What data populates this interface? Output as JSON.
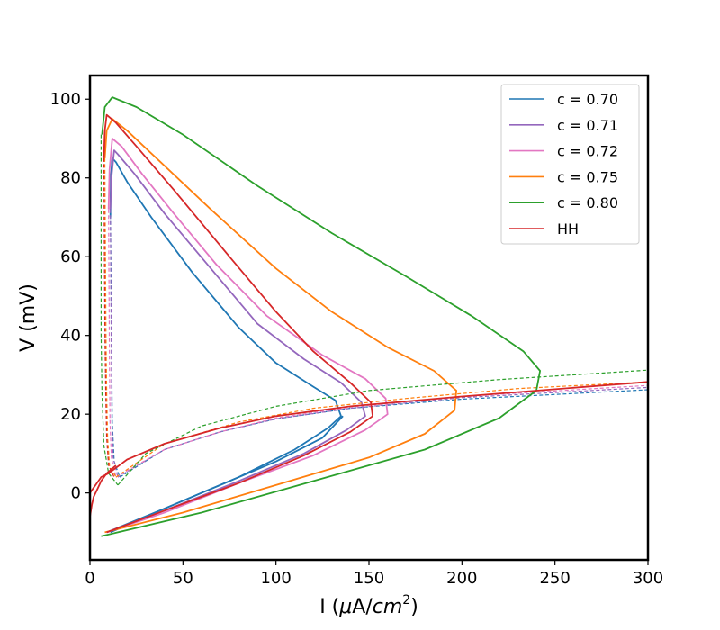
{
  "chart_data": {
    "type": "line",
    "title": "",
    "xlabel": {
      "prefix": "I (",
      "mu": "μ",
      "unit_mid": "A/",
      "unit_italic": "cm",
      "sup": "2",
      "suffix": ")"
    },
    "ylabel": "V (mV)",
    "xlim": [
      0,
      300
    ],
    "ylim": [
      -17,
      106
    ],
    "xticks": [
      "0",
      "50",
      "100",
      "150",
      "200",
      "250",
      "300"
    ],
    "yticks": [
      "0",
      "20",
      "40",
      "60",
      "80",
      "100"
    ],
    "xtick_values": [
      0,
      50,
      100,
      150,
      200,
      250,
      300
    ],
    "ytick_values": [
      0,
      20,
      40,
      60,
      80,
      100
    ],
    "grid": false,
    "legend_position": "top-right",
    "series": [
      {
        "name": "c = 0.70",
        "color": "#1f77b4",
        "solid": [
          [
            9,
            -10
          ],
          [
            40,
            -4
          ],
          [
            80,
            4
          ],
          [
            110,
            11
          ],
          [
            128,
            16.5
          ],
          [
            135,
            19.5
          ],
          [
            132,
            23.5
          ],
          [
            120,
            27
          ],
          [
            100,
            33
          ],
          [
            80,
            42
          ],
          [
            55,
            56
          ],
          [
            33,
            70
          ],
          [
            20,
            79
          ],
          [
            14,
            84
          ],
          [
            12,
            85
          ],
          [
            11.2,
            80
          ],
          [
            11,
            70
          ]
        ],
        "solid2": [
          [
            11,
            -10
          ],
          [
            30,
            -6
          ],
          [
            60,
            0
          ],
          [
            100,
            8
          ],
          [
            125,
            14
          ],
          [
            136,
            19.5
          ]
        ],
        "dashed": [
          [
            11,
            72
          ],
          [
            11.3,
            55
          ],
          [
            11.5,
            40
          ],
          [
            11.8,
            28
          ],
          [
            12,
            18
          ],
          [
            13,
            8
          ],
          [
            16,
            4
          ]
        ],
        "dashed2": [
          [
            16,
            4
          ],
          [
            40,
            11
          ],
          [
            70,
            15.5
          ],
          [
            100,
            18.8
          ],
          [
            140,
            21.5
          ],
          [
            200,
            23.8
          ],
          [
            300,
            26.2
          ]
        ]
      },
      {
        "name": "c = 0.71",
        "color": "#9467bd",
        "solid": [
          [
            9,
            -10
          ],
          [
            40,
            -4.5
          ],
          [
            80,
            3
          ],
          [
            115,
            10
          ],
          [
            138,
            16
          ],
          [
            148,
            19.5
          ],
          [
            146,
            23
          ],
          [
            135,
            28
          ],
          [
            115,
            34
          ],
          [
            90,
            43
          ],
          [
            65,
            57
          ],
          [
            40,
            71
          ],
          [
            24,
            81
          ],
          [
            15,
            86
          ],
          [
            13,
            87
          ],
          [
            11.5,
            80
          ],
          [
            11,
            72
          ]
        ],
        "dashed": [
          [
            11,
            72
          ],
          [
            11.2,
            55
          ],
          [
            11.4,
            40
          ],
          [
            11.6,
            28
          ],
          [
            11.8,
            18
          ],
          [
            12.5,
            9
          ],
          [
            15,
            4
          ]
        ],
        "dashed2": [
          [
            15,
            4
          ],
          [
            40,
            11
          ],
          [
            70,
            15.5
          ],
          [
            100,
            18.8
          ],
          [
            140,
            21.5
          ],
          [
            200,
            24.2
          ],
          [
            300,
            26.8
          ]
        ]
      },
      {
        "name": "c = 0.72",
        "color": "#e377c2",
        "solid": [
          [
            9,
            -10
          ],
          [
            40,
            -5
          ],
          [
            80,
            2.5
          ],
          [
            120,
            9.5
          ],
          [
            148,
            16
          ],
          [
            160,
            20
          ],
          [
            159,
            24
          ],
          [
            148,
            29
          ],
          [
            125,
            35
          ],
          [
            95,
            45
          ],
          [
            68,
            58
          ],
          [
            45,
            71
          ],
          [
            28,
            81
          ],
          [
            17,
            88
          ],
          [
            12,
            90
          ],
          [
            10.5,
            82
          ],
          [
            10,
            72
          ]
        ],
        "dashed": [
          [
            10,
            72
          ],
          [
            10.2,
            55
          ],
          [
            10.4,
            40
          ],
          [
            10.6,
            28
          ],
          [
            10.8,
            18
          ],
          [
            11.5,
            9
          ],
          [
            14,
            4
          ]
        ],
        "dashed2": [
          [
            14,
            4
          ],
          [
            40,
            11
          ],
          [
            70,
            15.5
          ],
          [
            100,
            19
          ],
          [
            140,
            21.8
          ],
          [
            200,
            24.5
          ],
          [
            300,
            27.3
          ]
        ]
      },
      {
        "name": "c = 0.75",
        "color": "#ff7f0e",
        "solid": [
          [
            8,
            -10
          ],
          [
            50,
            -5
          ],
          [
            100,
            2
          ],
          [
            150,
            9
          ],
          [
            180,
            15
          ],
          [
            196,
            21
          ],
          [
            197,
            26
          ],
          [
            185,
            31
          ],
          [
            160,
            37
          ],
          [
            130,
            46
          ],
          [
            100,
            57
          ],
          [
            65,
            72
          ],
          [
            38,
            84
          ],
          [
            20,
            92
          ],
          [
            12,
            95
          ],
          [
            9,
            92
          ],
          [
            8,
            85
          ]
        ],
        "dashed": [
          [
            8,
            85
          ],
          [
            8.3,
            60
          ],
          [
            8.6,
            40
          ],
          [
            9,
            25
          ],
          [
            9.5,
            14
          ],
          [
            10.5,
            7
          ],
          [
            14,
            4
          ]
        ],
        "dashed2": [
          [
            14,
            4
          ],
          [
            40,
            12.5
          ],
          [
            80,
            18
          ],
          [
            120,
            21.5
          ],
          [
            170,
            24
          ],
          [
            230,
            26.5
          ],
          [
            300,
            28.2
          ]
        ]
      },
      {
        "name": "c = 0.80",
        "color": "#2ca02c",
        "solid": [
          [
            6,
            -11
          ],
          [
            60,
            -5
          ],
          [
            120,
            3
          ],
          [
            180,
            11
          ],
          [
            220,
            19
          ],
          [
            240,
            26
          ],
          [
            242,
            31
          ],
          [
            233,
            36
          ],
          [
            205,
            45
          ],
          [
            170,
            55
          ],
          [
            130,
            66
          ],
          [
            90,
            78
          ],
          [
            50,
            91
          ],
          [
            25,
            98
          ],
          [
            12,
            100.5
          ],
          [
            8,
            98
          ],
          [
            6.5,
            91
          ]
        ],
        "dashed": [
          [
            6,
            91
          ],
          [
            6,
            60
          ],
          [
            6,
            40
          ],
          [
            6.5,
            25
          ],
          [
            7.5,
            12
          ],
          [
            10,
            5
          ],
          [
            15,
            2
          ]
        ],
        "dashed2": [
          [
            15,
            2
          ],
          [
            30,
            10
          ],
          [
            60,
            17
          ],
          [
            100,
            22
          ],
          [
            150,
            26
          ],
          [
            220,
            28.8
          ],
          [
            300,
            31.2
          ]
        ]
      },
      {
        "name": "HH",
        "color": "#d62728",
        "solid": [
          [
            9,
            -10
          ],
          [
            40,
            -4.5
          ],
          [
            80,
            2.5
          ],
          [
            115,
            9.5
          ],
          [
            140,
            15.5
          ],
          [
            152,
            19.5
          ],
          [
            151,
            23
          ],
          [
            140,
            28
          ],
          [
            120,
            36
          ],
          [
            100,
            46
          ],
          [
            75,
            60
          ],
          [
            45,
            77
          ],
          [
            25,
            88
          ],
          [
            14,
            94
          ],
          [
            9,
            96
          ],
          [
            8,
            92
          ],
          [
            7.5,
            85
          ]
        ],
        "solid_rest": [
          [
            0,
            0
          ],
          [
            3,
            2
          ],
          [
            6,
            4
          ],
          [
            10,
            5
          ],
          [
            20,
            8.5
          ],
          [
            40,
            12.5
          ],
          [
            70,
            16.5
          ],
          [
            100,
            19.5
          ],
          [
            140,
            22
          ],
          [
            200,
            24.5
          ],
          [
            300,
            28.2
          ]
        ],
        "solid_rest2": [
          [
            0,
            -6
          ],
          [
            1,
            -3
          ],
          [
            2,
            -1
          ],
          [
            4,
            1
          ],
          [
            6,
            3
          ],
          [
            9,
            5
          ],
          [
            14,
            7
          ]
        ],
        "dashed": [
          [
            7.5,
            85
          ],
          [
            7.8,
            60
          ],
          [
            8.1,
            40
          ],
          [
            8.5,
            25
          ],
          [
            9,
            14
          ],
          [
            10,
            7
          ],
          [
            13,
            4
          ]
        ]
      }
    ]
  }
}
